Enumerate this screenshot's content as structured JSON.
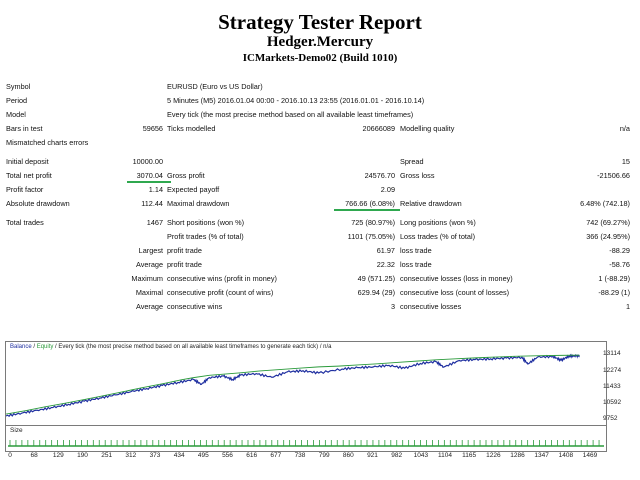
{
  "report": {
    "title": "Strategy Tester Report",
    "ea_name": "Hedger.Mercury",
    "server": "ICMarkets-Demo02 (Build 1010)"
  },
  "info": {
    "symbol_label": "Symbol",
    "symbol_value": "EURUSD (Euro vs US Dollar)",
    "period_label": "Period",
    "period_value": "5 Minutes (M5) 2016.01.04 00:00 - 2016.10.13 23:55 (2016.01.01 - 2016.10.14)",
    "model_label": "Model",
    "model_value": "Every tick (the most precise method based on all available least timeframes)",
    "bars_label": "Bars in test",
    "bars_value": "59656",
    "ticks_label": "Ticks modelled",
    "ticks_value": "20666089",
    "quality_label": "Modelling quality",
    "quality_value": "n/a",
    "mismatch_label": "Mismatched charts errors"
  },
  "stats": {
    "initial_deposit_label": "Initial deposit",
    "initial_deposit_value": "10000.00",
    "spread_label": "Spread",
    "spread_value": "15",
    "total_net_profit_label": "Total net profit",
    "total_net_profit_value": "3070.04",
    "gross_profit_label": "Gross profit",
    "gross_profit_value": "24576.70",
    "gross_loss_label": "Gross loss",
    "gross_loss_value": "-21506.66",
    "profit_factor_label": "Profit factor",
    "profit_factor_value": "1.14",
    "expected_payoff_label": "Expected payoff",
    "expected_payoff_value": "2.09",
    "abs_drawdown_label": "Absolute drawdown",
    "abs_drawdown_value": "112.44",
    "max_drawdown_label": "Maximal drawdown",
    "max_drawdown_value": "766.66 (6.08%)",
    "rel_drawdown_label": "Relative drawdown",
    "rel_drawdown_value": "6.48% (742.18)",
    "total_trades_label": "Total trades",
    "total_trades_value": "1467",
    "short_label": "Short positions (won %)",
    "short_value": "725 (80.97%)",
    "long_label": "Long positions (won %)",
    "long_value": "742 (69.27%)",
    "profit_trades_label": "Profit trades (% of total)",
    "profit_trades_value": "1101 (75.05%)",
    "loss_trades_label": "Loss trades (% of total)",
    "loss_trades_value": "366 (24.95%)",
    "largest_label": "Largest",
    "largest_profit_label": "profit trade",
    "largest_profit_value": "61.97",
    "largest_loss_label": "loss trade",
    "largest_loss_value": "-88.29",
    "average_label": "Average",
    "average_profit_label": "profit trade",
    "average_profit_value": "22.32",
    "average_loss_label": "loss trade",
    "average_loss_value": "-58.76",
    "max_label": "Maximum",
    "max_wins_label": "consecutive wins (profit in money)",
    "max_wins_value": "49 (571.25)",
    "max_losses_label": "consecutive losses (loss in money)",
    "max_losses_value": "1 (-88.29)",
    "maximal_label": "Maximal",
    "maximal_profit_label": "consecutive profit (count of wins)",
    "maximal_profit_value": "629.94 (29)",
    "maximal_loss_label": "consecutive loss (count of losses)",
    "maximal_loss_value": "-88.29 (1)",
    "avg_label": "Average",
    "avg_wins_label": "consecutive wins",
    "avg_wins_value": "3",
    "avg_losses_label": "consecutive losses",
    "avg_losses_value": "1"
  },
  "chart": {
    "legend_balance": "Balance",
    "legend_sep1": " / ",
    "legend_equity": "Equity",
    "legend_rest": " / Every tick (the most precise method based on all available least timeframes to generate each tick) / n/a",
    "size_label": "Size",
    "balance_color": "#1f2fa0",
    "equity_color": "#2a9a3a",
    "size_color": "#2a9a3a"
  },
  "chart_data": {
    "type": "line",
    "xlim": [
      0,
      1530
    ],
    "ylim": [
      9752,
      13400
    ],
    "x_ticks": [
      "0",
      "68",
      "129",
      "190",
      "251",
      "312",
      "373",
      "434",
      "495",
      "556",
      "616",
      "677",
      "738",
      "799",
      "860",
      "921",
      "982",
      "1043",
      "1104",
      "1165",
      "1226",
      "1286",
      "1347",
      "1408",
      "1469"
    ],
    "y_ticks": [
      "13114",
      "12274",
      "11433",
      "10592",
      "9752"
    ],
    "series": [
      {
        "name": "Balance",
        "x": [
          0,
          50,
          100,
          150,
          200,
          250,
          300,
          350,
          400,
          450,
          480,
          520,
          556,
          600,
          650,
          700,
          750,
          800,
          850,
          900,
          950,
          1000,
          1050,
          1100,
          1150,
          1200,
          1250,
          1300,
          1340,
          1380,
          1420,
          1450,
          1467
        ],
        "values": [
          10000,
          10180,
          10380,
          10560,
          10760,
          10960,
          11170,
          11380,
          11580,
          11790,
          11900,
          12020,
          12080,
          12150,
          12250,
          12320,
          12390,
          12460,
          12500,
          12560,
          12620,
          12690,
          12760,
          12830,
          12880,
          12930,
          12970,
          13010,
          13030,
          13050,
          13060,
          13070,
          13070
        ]
      },
      {
        "name": "Equity",
        "x": [
          0,
          40,
          80,
          120,
          160,
          200,
          240,
          280,
          320,
          360,
          400,
          440,
          480,
          500,
          520,
          556,
          580,
          600,
          640,
          680,
          720,
          760,
          800,
          860,
          900,
          940,
          980,
          1020,
          1060,
          1100,
          1120,
          1160,
          1200,
          1240,
          1280,
          1320,
          1335,
          1360,
          1400,
          1420,
          1440,
          1460,
          1467
        ],
        "values": [
          9960,
          10110,
          10260,
          10400,
          10570,
          10730,
          10900,
          11060,
          11230,
          11390,
          11550,
          11710,
          11860,
          11610,
          11960,
          12040,
          11860,
          12090,
          12170,
          11980,
          12260,
          12320,
          12200,
          12410,
          12480,
          12520,
          12600,
          12450,
          12700,
          12790,
          12510,
          12850,
          12900,
          12940,
          12980,
          13020,
          12670,
          13030,
          13060,
          12860,
          13080,
          13090,
          13114
        ]
      }
    ]
  }
}
